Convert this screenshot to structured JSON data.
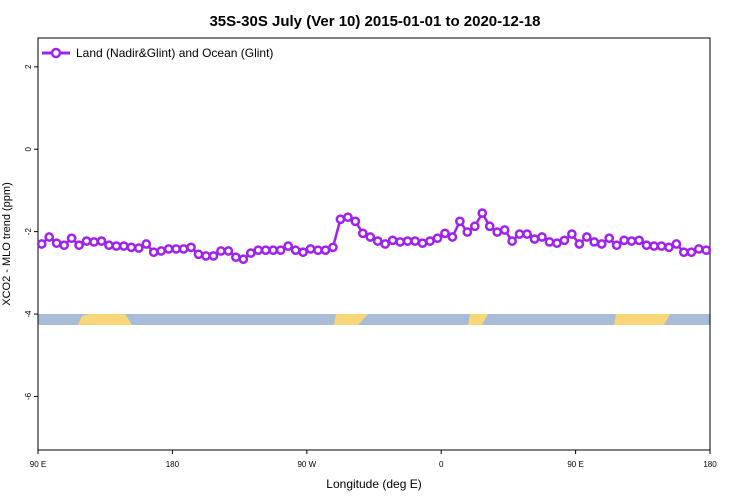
{
  "chart_data": {
    "type": "line",
    "title": "35S-30S July (Ver 10)   2015-01-01 to 2020-12-18",
    "x_label": "Longitude (deg E)",
    "y_label": "XCO2 - MLO trend (ppm)",
    "xlim": [
      90,
      540
    ],
    "ylim": [
      -7.3,
      2.7
    ],
    "xticks": [
      {
        "value": 90,
        "label": "90 E"
      },
      180,
      {
        "value": 270,
        "label": "90 W"
      },
      {
        "value": 360,
        "label": "0"
      },
      {
        "value": 450,
        "label": "90 E"
      },
      {
        "value": 540,
        "label": "180"
      }
    ],
    "yticks": [
      2,
      0,
      -2,
      -4,
      -6
    ],
    "legend": "top-left",
    "x": [
      92.5,
      97.5,
      102.5,
      107.5,
      112.5,
      117.5,
      122.5,
      127.5,
      132.5,
      137.5,
      142.5,
      147.5,
      152.5,
      157.5,
      162.5,
      167.5,
      172.5,
      177.5,
      182.5,
      187.5,
      192.5,
      197.5,
      202.5,
      207.5,
      212.5,
      217.5,
      222.5,
      227.5,
      232.5,
      237.5,
      242.5,
      247.5,
      252.5,
      257.5,
      262.5,
      267.5,
      272.5,
      277.5,
      282.5,
      287.5,
      292.5,
      297.5,
      302.5,
      307.5,
      312.5,
      317.5,
      322.5,
      327.5,
      332.5,
      337.5,
      342.5,
      347.5,
      352.5,
      357.5,
      362.5,
      367.5,
      372.5,
      377.5,
      382.5,
      387.5,
      392.5,
      397.5,
      402.5,
      407.5,
      412.5,
      417.5,
      422.5,
      427.5,
      432.5,
      437.5,
      442.5,
      447.5,
      452.5,
      457.5,
      462.5,
      467.5,
      472.5,
      477.5,
      482.5,
      487.5,
      492.5,
      497.5,
      502.5,
      507.5,
      512.5,
      517.5,
      522.5,
      527.5,
      532.5,
      537.5
    ],
    "series": [
      {
        "name": "Land (Nadir&Glint) and Ocean (Glint)",
        "color": "#a020f0",
        "values": [
          -2.3,
          -2.13,
          -2.28,
          -2.33,
          -2.16,
          -2.33,
          -2.23,
          -2.25,
          -2.23,
          -2.33,
          -2.35,
          -2.35,
          -2.38,
          -2.4,
          -2.3,
          -2.5,
          -2.47,
          -2.42,
          -2.42,
          -2.42,
          -2.38,
          -2.55,
          -2.59,
          -2.59,
          -2.47,
          -2.47,
          -2.62,
          -2.67,
          -2.52,
          -2.45,
          -2.45,
          -2.45,
          -2.45,
          -2.35,
          -2.45,
          -2.5,
          -2.42,
          -2.45,
          -2.45,
          -2.38,
          -1.7,
          -1.65,
          -1.75,
          -2.04,
          -2.13,
          -2.23,
          -2.3,
          -2.21,
          -2.25,
          -2.23,
          -2.23,
          -2.28,
          -2.23,
          -2.16,
          -2.04,
          -2.13,
          -1.75,
          -2.01,
          -1.87,
          -1.55,
          -1.87,
          -2.01,
          -1.96,
          -2.23,
          -2.06,
          -2.06,
          -2.18,
          -2.13,
          -2.25,
          -2.28,
          -2.21,
          -2.06,
          -2.3,
          -2.13,
          -2.25,
          -2.3,
          -2.16,
          -2.33,
          -2.21,
          -2.23,
          -2.21,
          -2.33,
          -2.35,
          -2.35,
          -2.38,
          -2.3,
          -2.5,
          -2.5,
          -2.42,
          -2.45
        ]
      }
    ]
  }
}
